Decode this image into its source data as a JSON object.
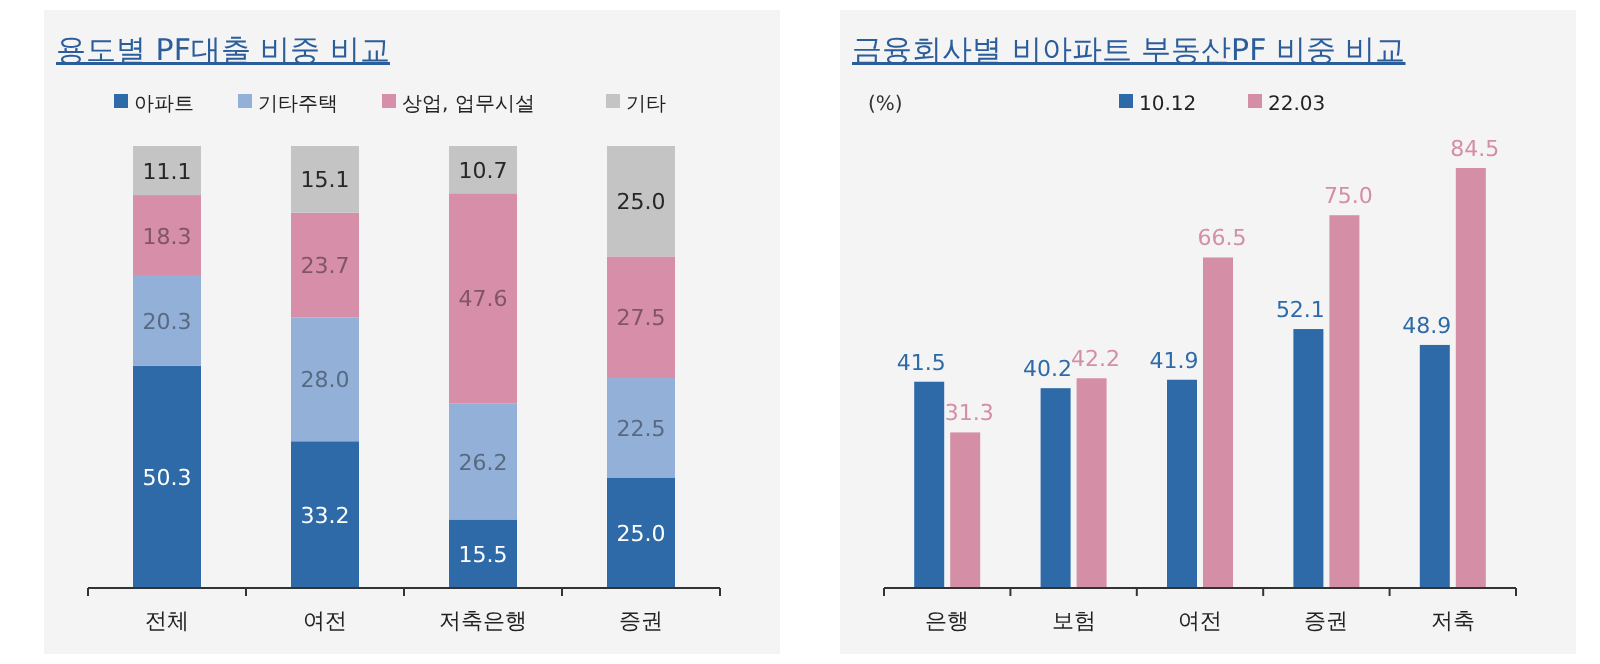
{
  "chart_data": [
    {
      "type": "bar",
      "title": "용도별 PF대출 비중 비교",
      "stacked": true,
      "legend": "top",
      "categories": [
        "전체",
        "여전",
        "저축은행",
        "증권"
      ],
      "series": [
        {
          "name": "아파트",
          "color": "#2e6aa8",
          "values": [
            50.3,
            33.2,
            15.5,
            25.0
          ],
          "value_labels": [
            "50.3",
            "33.2",
            "15.5",
            "25.0"
          ]
        },
        {
          "name": "기타주택",
          "color": "#93b0d8",
          "values": [
            20.3,
            28.0,
            26.2,
            22.5
          ],
          "value_labels": [
            "20.3",
            "28.0",
            "26.2",
            "22.5"
          ]
        },
        {
          "name": "상업, 업무시설",
          "color": "#d78ea8",
          "values": [
            18.3,
            23.7,
            47.6,
            27.5
          ],
          "value_labels": [
            "18.3",
            "23.7",
            "47.6",
            "27.5"
          ]
        },
        {
          "name": "기타",
          "color": "#c4c4c4",
          "values": [
            11.1,
            15.1,
            10.7,
            25.0
          ],
          "value_labels": [
            "11.1",
            "15.1",
            "10.7",
            "25.0"
          ]
        }
      ]
    },
    {
      "type": "bar",
      "title": "금융회사별 비아파트 부동산PF 비중 비교",
      "ylabel": "(%)",
      "legend": "top",
      "categories": [
        "은행",
        "보험",
        "여전",
        "증권",
        "저축"
      ],
      "series": [
        {
          "name": "10.12",
          "color": "#2e6aa8",
          "values": [
            41.5,
            40.2,
            41.9,
            52.1,
            48.9
          ],
          "value_labels": [
            "41.5",
            "40.2",
            "41.9",
            "52.1",
            "48.9"
          ]
        },
        {
          "name": "22.03",
          "color": "#d48ea6",
          "values": [
            31.3,
            42.2,
            66.5,
            75.0,
            84.5
          ],
          "value_labels": [
            "31.3",
            "42.2",
            "66.5",
            "75.0",
            "84.5"
          ]
        }
      ]
    }
  ]
}
